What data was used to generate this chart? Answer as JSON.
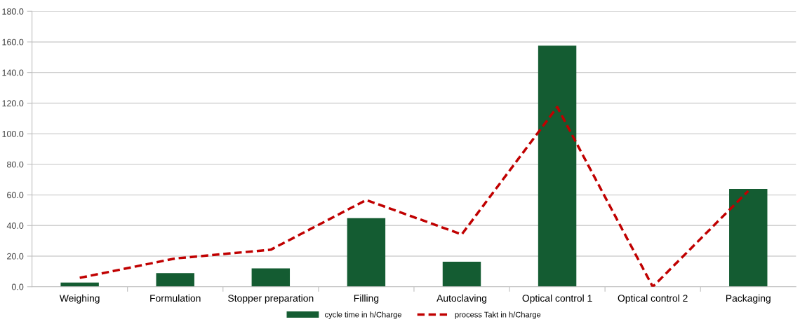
{
  "chart_data": {
    "type": "bar",
    "categories": [
      "Weighing",
      "Formulation",
      "Stopper preparation",
      "Filling",
      "Autoclaving",
      "Optical control 1",
      "Optical control 2",
      "Packaging"
    ],
    "series": [
      {
        "name": "cycle time in h/Charge",
        "color": "#145c32",
        "values": [
          2.8,
          8.9,
          12.0,
          44.8,
          16.4,
          157.6,
          0,
          63.9
        ]
      },
      {
        "name": "process Takt in h/Charge",
        "type": "line",
        "color": "#c00000",
        "line_style": "dashed",
        "values": [
          5.8,
          18.5,
          24.2,
          56.7,
          34.2,
          117.5,
          0,
          62.6
        ]
      }
    ],
    "ylim": [
      0,
      180
    ],
    "yticks": [
      {
        "value": 0,
        "label": "0.0"
      },
      {
        "value": 20,
        "label": "20.0"
      },
      {
        "value": 40,
        "label": "40.0"
      },
      {
        "value": 60,
        "label": "60.0"
      },
      {
        "value": 80,
        "label": "80.0"
      },
      {
        "value": 100,
        "label": "100.0"
      },
      {
        "value": 120,
        "label": "120.0"
      },
      {
        "value": 140,
        "label": "140.0"
      },
      {
        "value": 160,
        "label": "160.0"
      },
      {
        "value": 180,
        "label": "180.0"
      }
    ],
    "grid": "y",
    "legend": "bottom"
  }
}
